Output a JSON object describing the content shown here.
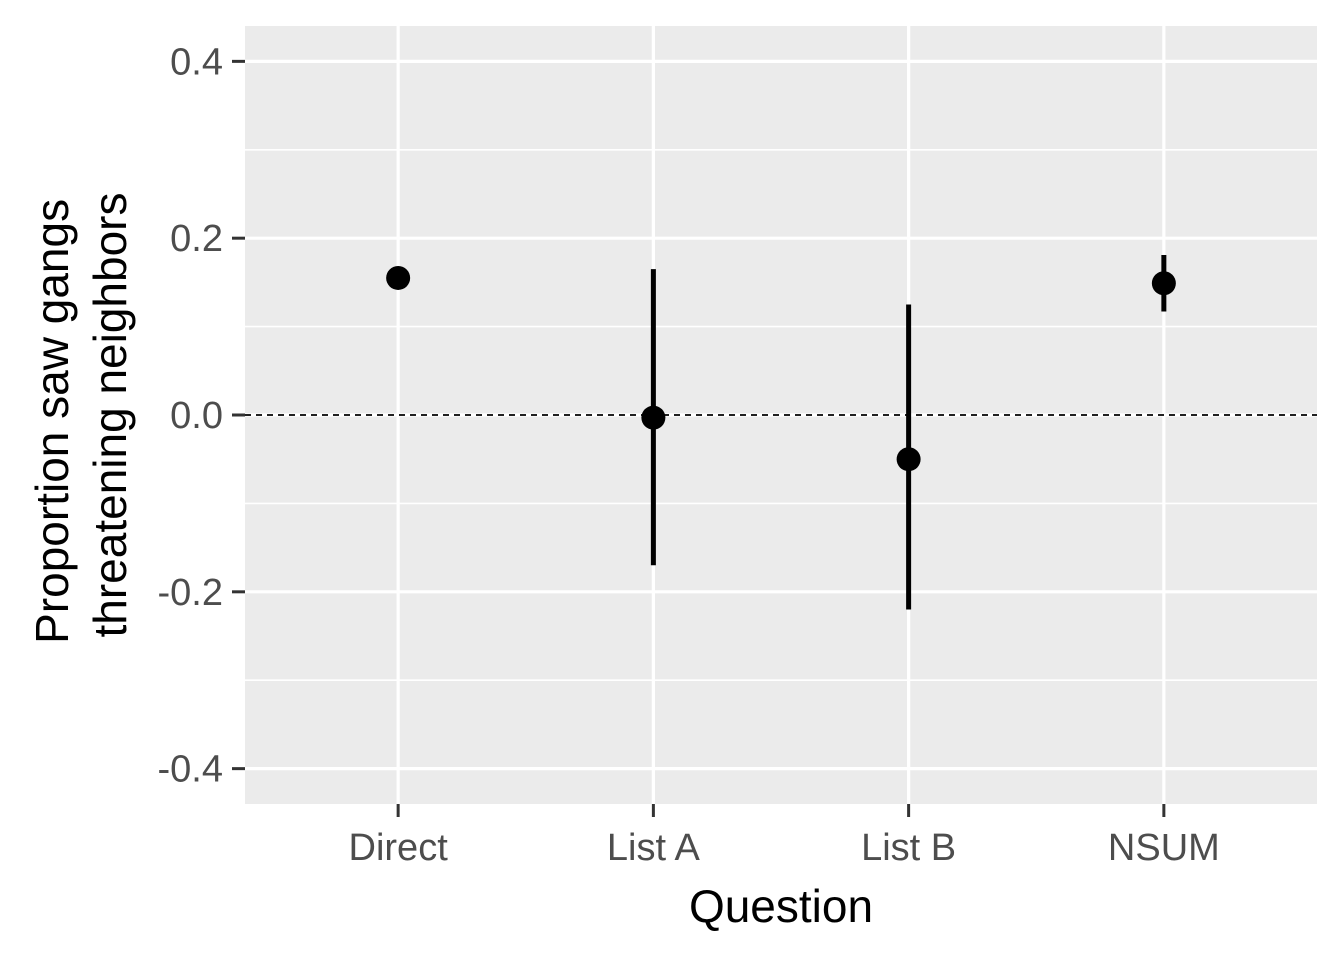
{
  "chart_data": {
    "type": "scatter",
    "xlabel": "Question",
    "ylabel_lines": [
      "Proportion saw gangs",
      "threatening neighbors"
    ],
    "categories": [
      "Direct",
      "List A",
      "List B",
      "NSUM"
    ],
    "series": [
      {
        "points": [
          {
            "x": "Direct",
            "y": 0.155,
            "ymin": 0.15,
            "ymax": 0.16
          },
          {
            "x": "List A",
            "y": -0.003,
            "ymin": -0.17,
            "ymax": 0.165
          },
          {
            "x": "List B",
            "y": -0.05,
            "ymin": -0.22,
            "ymax": 0.125
          },
          {
            "x": "NSUM",
            "y": 0.149,
            "ymin": 0.117,
            "ymax": 0.181
          }
        ]
      }
    ],
    "reference_line": {
      "y": 0.0,
      "style": "dashed"
    },
    "ylim": [
      -0.44,
      0.44
    ],
    "yticks": [
      0.4,
      0.2,
      0.0,
      -0.2,
      -0.4
    ],
    "ytick_labels": [
      "0.4",
      "0.2",
      "0.0",
      "-0.2",
      "-0.4"
    ],
    "grid": true,
    "legend": "none",
    "colors": {
      "panel": "#ebebeb",
      "grid": "#ffffff",
      "points": "#000000",
      "tick_text": "#4d4d4d"
    }
  }
}
